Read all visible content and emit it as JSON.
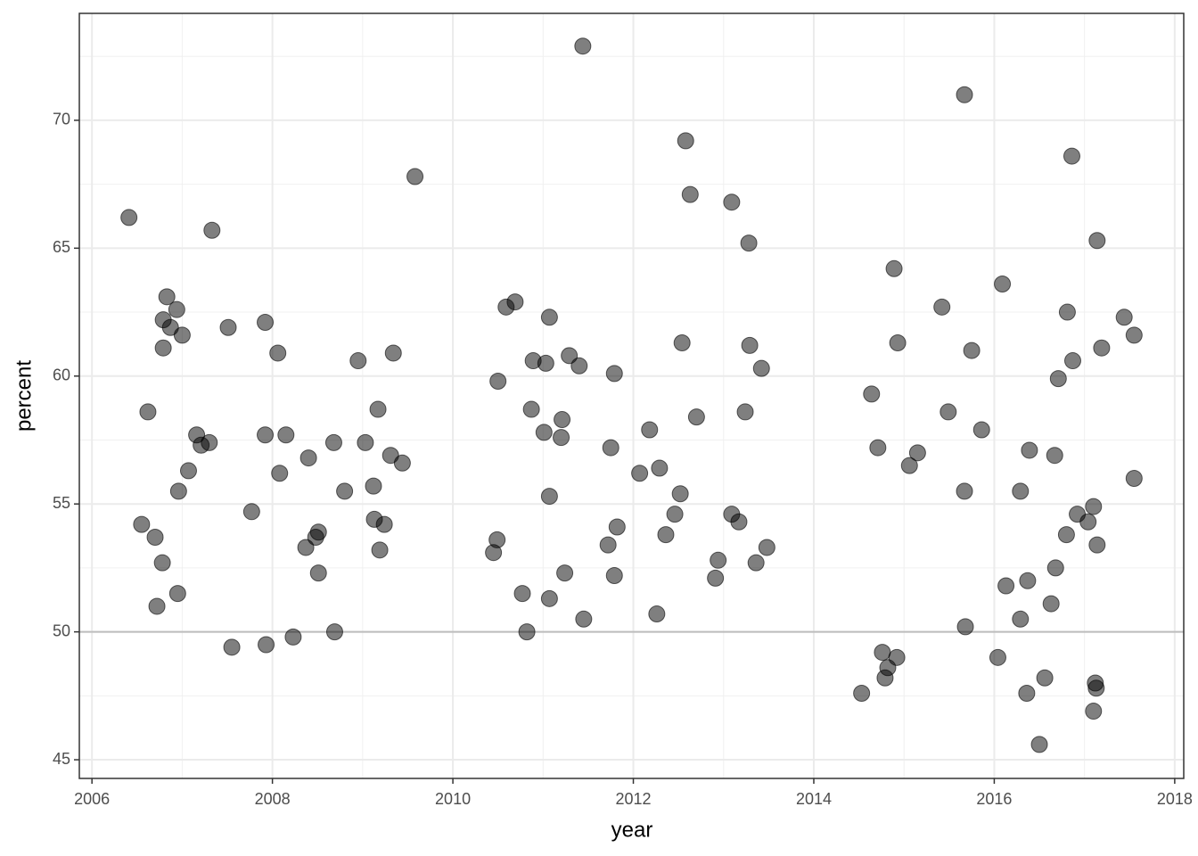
{
  "chart_data": {
    "type": "scatter",
    "x_label": "year",
    "y_label": "percent",
    "color": "#000000",
    "grid": true,
    "hline": 50,
    "x": [
      2006.41,
      2006.62,
      2006.55,
      2006.7,
      2006.78,
      2006.72,
      2006.95,
      2006.83,
      2006.79,
      2006.87,
      2006.94,
      2006.79,
      2007.0,
      2006.96,
      2007.07,
      2007.16,
      2007.21,
      2007.3,
      2007.33,
      2007.51,
      2007.55,
      2007.77,
      2007.92,
      2007.92,
      2007.93,
      2008.06,
      2008.08,
      2008.15,
      2008.23,
      2008.37,
      2008.4,
      2008.48,
      2008.51,
      2008.51,
      2008.68,
      2008.69,
      2008.8,
      2008.95,
      2009.03,
      2009.12,
      2009.17,
      2009.13,
      2009.24,
      2009.19,
      2009.31,
      2009.34,
      2009.44,
      2009.58,
      2010.45,
      2010.49,
      2010.5,
      2010.59,
      2010.69,
      2010.77,
      2010.82,
      2010.87,
      2010.89,
      2011.01,
      2011.03,
      2011.07,
      2011.07,
      2011.07,
      2011.21,
      2011.2,
      2011.24,
      2011.29,
      2011.4,
      2011.44,
      2011.45,
      2011.75,
      2011.72,
      2011.79,
      2011.82,
      2011.79,
      2012.07,
      2012.18,
      2012.29,
      2012.26,
      2012.36,
      2012.46,
      2012.52,
      2012.54,
      2012.58,
      2012.63,
      2012.7,
      2012.91,
      2012.94,
      2013.09,
      2013.09,
      2013.17,
      2013.24,
      2013.28,
      2013.29,
      2013.36,
      2013.42,
      2013.48,
      2014.53,
      2014.64,
      2014.71,
      2014.76,
      2014.79,
      2014.82,
      2014.92,
      2014.89,
      2014.93,
      2015.06,
      2015.15,
      2015.42,
      2015.49,
      2015.67,
      2015.67,
      2015.68,
      2015.75,
      2015.86,
      2016.04,
      2016.09,
      2016.13,
      2016.29,
      2016.29,
      2016.36,
      2016.37,
      2016.39,
      2016.5,
      2016.56,
      2016.63,
      2016.67,
      2016.68,
      2016.71,
      2016.8,
      2016.81,
      2016.86,
      2016.87,
      2016.92,
      2017.04,
      2017.1,
      2017.1,
      2017.12,
      2017.13,
      2017.14,
      2017.14,
      2017.19,
      2017.44,
      2017.55,
      2017.55
    ],
    "y": [
      66.2,
      58.6,
      54.2,
      53.7,
      52.7,
      51.0,
      51.5,
      63.1,
      62.2,
      61.9,
      62.6,
      61.1,
      61.6,
      55.5,
      56.3,
      57.7,
      57.3,
      57.4,
      65.7,
      61.9,
      49.4,
      54.7,
      62.1,
      57.7,
      49.5,
      60.9,
      56.2,
      57.7,
      49.8,
      53.3,
      56.8,
      53.7,
      53.9,
      52.3,
      57.4,
      50.0,
      55.5,
      60.6,
      57.4,
      55.7,
      58.7,
      54.4,
      54.2,
      53.2,
      56.9,
      60.9,
      56.6,
      67.8,
      53.1,
      53.6,
      59.8,
      62.7,
      62.9,
      51.5,
      50.0,
      58.7,
      60.6,
      57.8,
      60.5,
      62.3,
      55.3,
      51.3,
      58.3,
      57.6,
      52.3,
      60.8,
      60.4,
      72.9,
      50.5,
      57.2,
      53.4,
      60.1,
      54.1,
      52.2,
      56.2,
      57.9,
      56.4,
      50.7,
      53.8,
      54.6,
      55.4,
      61.3,
      69.2,
      67.1,
      58.4,
      52.1,
      52.8,
      66.8,
      54.6,
      54.3,
      58.6,
      65.2,
      61.2,
      52.7,
      60.3,
      53.3,
      47.6,
      59.3,
      57.2,
      49.2,
      48.2,
      48.6,
      49.0,
      64.2,
      61.3,
      56.5,
      57.0,
      62.7,
      58.6,
      71.0,
      55.5,
      50.2,
      61.0,
      57.9,
      49.0,
      63.6,
      51.8,
      55.5,
      50.5,
      47.6,
      52.0,
      57.1,
      45.6,
      48.2,
      51.1,
      56.9,
      52.5,
      59.9,
      53.8,
      62.5,
      68.6,
      60.6,
      54.6,
      54.3,
      54.9,
      46.9,
      48.0,
      47.8,
      53.4,
      65.3,
      61.1,
      62.3,
      61.6,
      56.0
    ],
    "xlim": [
      2005.86,
      2018.1
    ],
    "ylim": [
      44.27,
      74.18
    ],
    "xticks": [
      2006,
      2008,
      2010,
      2012,
      2014,
      2016,
      2018
    ],
    "yticks": [
      45,
      50,
      55,
      60,
      65,
      70
    ]
  }
}
